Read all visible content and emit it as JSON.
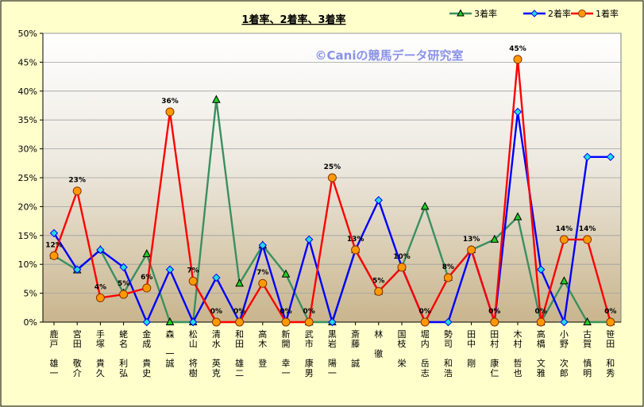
{
  "chart_data": {
    "type": "line",
    "title": "1着率、2着率、3着率",
    "watermark": "©Caniの競馬データ研究室",
    "xlabel": "",
    "ylabel": "",
    "ylim": [
      0,
      50
    ],
    "y_ticks": [
      "0%",
      "5%",
      "10%",
      "15%",
      "20%",
      "25%",
      "30%",
      "35%",
      "40%",
      "45%",
      "50%"
    ],
    "grid": "horizontal",
    "legend_position": "top-right",
    "categories": [
      "鹿戸 雄一",
      "宮田 敬介",
      "手塚 貴久",
      "蛯名 利弘",
      "金成 貴史",
      "森 一誠",
      "松山 将樹",
      "清水 英克",
      "和田 雄二",
      "高木 登",
      "新開 幸一",
      "武市 康男",
      "黒岩 陽一",
      "斎藤 誠",
      "林 徹",
      "国枝 栄",
      "堀内 岳志",
      "勢司 和浩",
      "田中 剛",
      "田村 康仁",
      "木村 哲也",
      "高橋 文雅",
      "小野 次郎",
      "古賀 慎明",
      "笹田 和秀"
    ],
    "series": [
      {
        "name": "3着率",
        "color": "#3a9060",
        "marker": "triangle",
        "marker_color": "#22cc22",
        "values": [
          11.5,
          9,
          12.5,
          5,
          11.8,
          0,
          0,
          38.5,
          6.7,
          13.3,
          8.3,
          0,
          0,
          12.5,
          5.3,
          9.5,
          20,
          7.7,
          12.5,
          14.3,
          18.2,
          0,
          7.1,
          0,
          0
        ]
      },
      {
        "name": "2着率",
        "color": "#0000ff",
        "marker": "diamond",
        "marker_color": "#22dddd",
        "values": [
          15.4,
          9.1,
          12.5,
          9.5,
          0,
          9.1,
          0,
          7.7,
          0,
          13.3,
          0,
          14.3,
          0,
          12.5,
          21.1,
          9.5,
          0,
          0,
          12.5,
          0,
          36.4,
          9.1,
          0,
          28.6,
          28.6
        ]
      },
      {
        "name": "1着率",
        "color": "#ff0000",
        "marker": "circle",
        "marker_color": "#ff9900",
        "values": [
          11.5,
          22.7,
          4.2,
          4.8,
          5.9,
          36.4,
          7.1,
          0,
          0,
          6.7,
          0,
          0,
          25,
          12.5,
          5.3,
          9.5,
          0,
          7.7,
          12.5,
          0,
          45.5,
          0,
          14.3,
          14.3,
          0
        ],
        "data_labels": [
          "12%",
          "23%",
          "4%",
          "5%",
          "6%",
          "36%",
          "7%",
          "0%",
          "0%",
          "7%",
          "0%",
          "0%",
          "25%",
          "13%",
          "5%",
          "10%",
          "0%",
          "8%",
          "13%",
          "0%",
          "45%",
          "0%",
          "14%",
          "14%",
          "0%"
        ]
      }
    ]
  }
}
